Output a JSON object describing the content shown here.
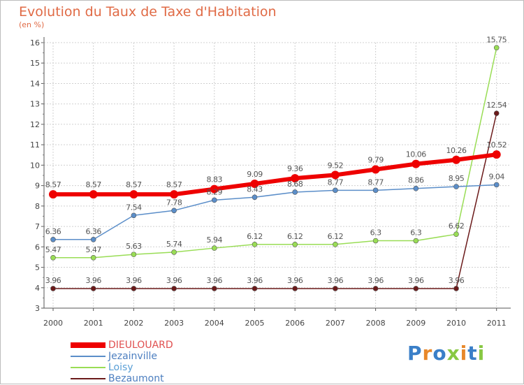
{
  "chart": {
    "title": "Evolution du Taux de Taxe d'Habitation",
    "subtitle": "(en %)"
  },
  "chart_data": {
    "type": "line",
    "title": "Evolution du Taux de Taxe d'Habitation",
    "subtitle": "(en %)",
    "x": [
      "2000",
      "2001",
      "2002",
      "2003",
      "2004",
      "2005",
      "2006",
      "2007",
      "2008",
      "2009",
      "2010",
      "2011"
    ],
    "ylim": [
      3,
      16
    ],
    "yticks": [
      "3",
      "4",
      "5",
      "6",
      "7",
      "8",
      "9",
      "10",
      "11",
      "12",
      "13",
      "14",
      "15",
      "16"
    ],
    "grid": true,
    "legend_position": "bottom-left",
    "series": [
      {
        "name": "DIEULOUARD",
        "color": "#ee0000",
        "values": [
          8.57,
          8.57,
          8.57,
          8.57,
          8.83,
          9.09,
          9.36,
          9.52,
          9.79,
          10.06,
          10.26,
          10.52
        ]
      },
      {
        "name": "Jezainville",
        "color": "#5b8ec9",
        "values": [
          6.36,
          6.36,
          7.54,
          7.78,
          8.29,
          8.43,
          8.68,
          8.77,
          8.77,
          8.86,
          8.95,
          9.04
        ]
      },
      {
        "name": "Loisy",
        "color": "#99dd55",
        "values": [
          5.47,
          5.47,
          5.63,
          5.74,
          5.94,
          6.12,
          6.12,
          6.12,
          6.3,
          6.3,
          6.62,
          15.75
        ]
      },
      {
        "name": "Bezaumont",
        "color": "#6b1a1a",
        "values": [
          3.96,
          3.96,
          3.96,
          3.96,
          3.96,
          3.96,
          3.96,
          3.96,
          3.96,
          3.96,
          3.96,
          12.54
        ]
      }
    ],
    "data_labels": [
      [
        "8.57",
        "8.57",
        "8.57",
        "8.57",
        "8.83",
        "9.09",
        "9.36",
        "9.52",
        "9.79",
        "10.06",
        "10.26",
        "10.52"
      ],
      [
        "6.36",
        "6.36",
        "7.54",
        "7.78",
        "8.29",
        "8.43",
        "8.68",
        "8.77",
        "8.77",
        "8.86",
        "8.95",
        "9.04"
      ],
      [
        "5.47",
        "5.47",
        "5.63",
        "5.74",
        "5.94",
        "6.12",
        "6.12",
        "6.12",
        "6.3",
        "6.3",
        "6.62",
        "15.75"
      ],
      [
        "3.96",
        "3.96",
        "3.96",
        "3.96",
        "3.96",
        "3.96",
        "3.96",
        "3.96",
        "3.96",
        "3.96",
        "3.96",
        "12.54"
      ]
    ]
  },
  "logo": {
    "letters": [
      "P",
      "r",
      "o",
      "x",
      "i",
      "t",
      "i"
    ],
    "colors": [
      "#3a7fc8",
      "#e8882a",
      "#3a7fc8",
      "#88c843",
      "#e8882a",
      "#3a7fc8",
      "#88c843"
    ]
  }
}
